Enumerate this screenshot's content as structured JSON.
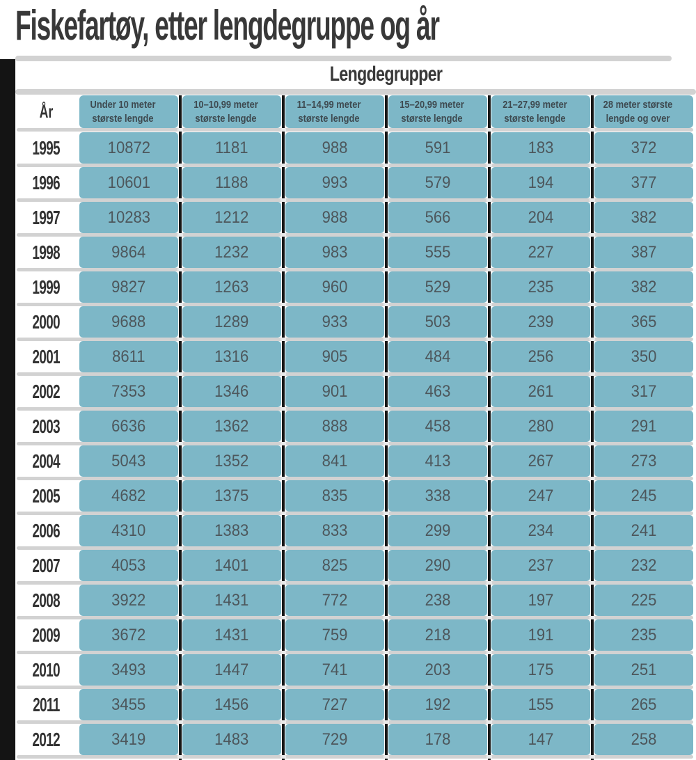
{
  "page": {
    "title": "Fiskefartøy, etter lengdegruppe og år"
  },
  "colors": {
    "cell_blue": "#7db7c7",
    "title_dark": "#383838",
    "value_text": "#4d575c",
    "separator_gray": "#d2d2d2",
    "divider_black": "#161616",
    "background": "#ffffff"
  },
  "chart_data": {
    "type": "table",
    "title": "Fiskefartøy, etter lengdegruppe og år",
    "group_header": "Lengdegrupper",
    "row_header": "År",
    "columns": [
      "Under 10 meter største lengde",
      "10–10,99 meter største lengde",
      "11–14,99 meter største lengde",
      "15–20,99 meter største lengde",
      "21–27,99 meter største lengde",
      "28 meter største lengde og over"
    ],
    "rows": [
      {
        "year": "1995",
        "values": [
          10872,
          1181,
          988,
          591,
          183,
          372
        ]
      },
      {
        "year": "1996",
        "values": [
          10601,
          1188,
          993,
          579,
          194,
          377
        ]
      },
      {
        "year": "1997",
        "values": [
          10283,
          1212,
          988,
          566,
          204,
          382
        ]
      },
      {
        "year": "1998",
        "values": [
          9864,
          1232,
          983,
          555,
          227,
          387
        ]
      },
      {
        "year": "1999",
        "values": [
          9827,
          1263,
          960,
          529,
          235,
          382
        ]
      },
      {
        "year": "2000",
        "values": [
          9688,
          1289,
          933,
          503,
          239,
          365
        ]
      },
      {
        "year": "2001",
        "values": [
          8611,
          1316,
          905,
          484,
          256,
          350
        ]
      },
      {
        "year": "2002",
        "values": [
          7353,
          1346,
          901,
          463,
          261,
          317
        ]
      },
      {
        "year": "2003",
        "values": [
          6636,
          1362,
          888,
          458,
          280,
          291
        ]
      },
      {
        "year": "2004",
        "values": [
          5043,
          1352,
          841,
          413,
          267,
          273
        ]
      },
      {
        "year": "2005",
        "values": [
          4682,
          1375,
          835,
          338,
          247,
          245
        ]
      },
      {
        "year": "2006",
        "values": [
          4310,
          1383,
          833,
          299,
          234,
          241
        ]
      },
      {
        "year": "2007",
        "values": [
          4053,
          1401,
          825,
          290,
          237,
          232
        ]
      },
      {
        "year": "2008",
        "values": [
          3922,
          1431,
          772,
          238,
          197,
          225
        ]
      },
      {
        "year": "2009",
        "values": [
          3672,
          1431,
          759,
          218,
          191,
          235
        ]
      },
      {
        "year": "2010",
        "values": [
          3493,
          1447,
          741,
          203,
          175,
          251
        ]
      },
      {
        "year": "2011",
        "values": [
          3455,
          1456,
          727,
          192,
          155,
          265
        ]
      },
      {
        "year": "2012",
        "values": [
          3419,
          1483,
          729,
          178,
          147,
          258
        ]
      }
    ]
  }
}
